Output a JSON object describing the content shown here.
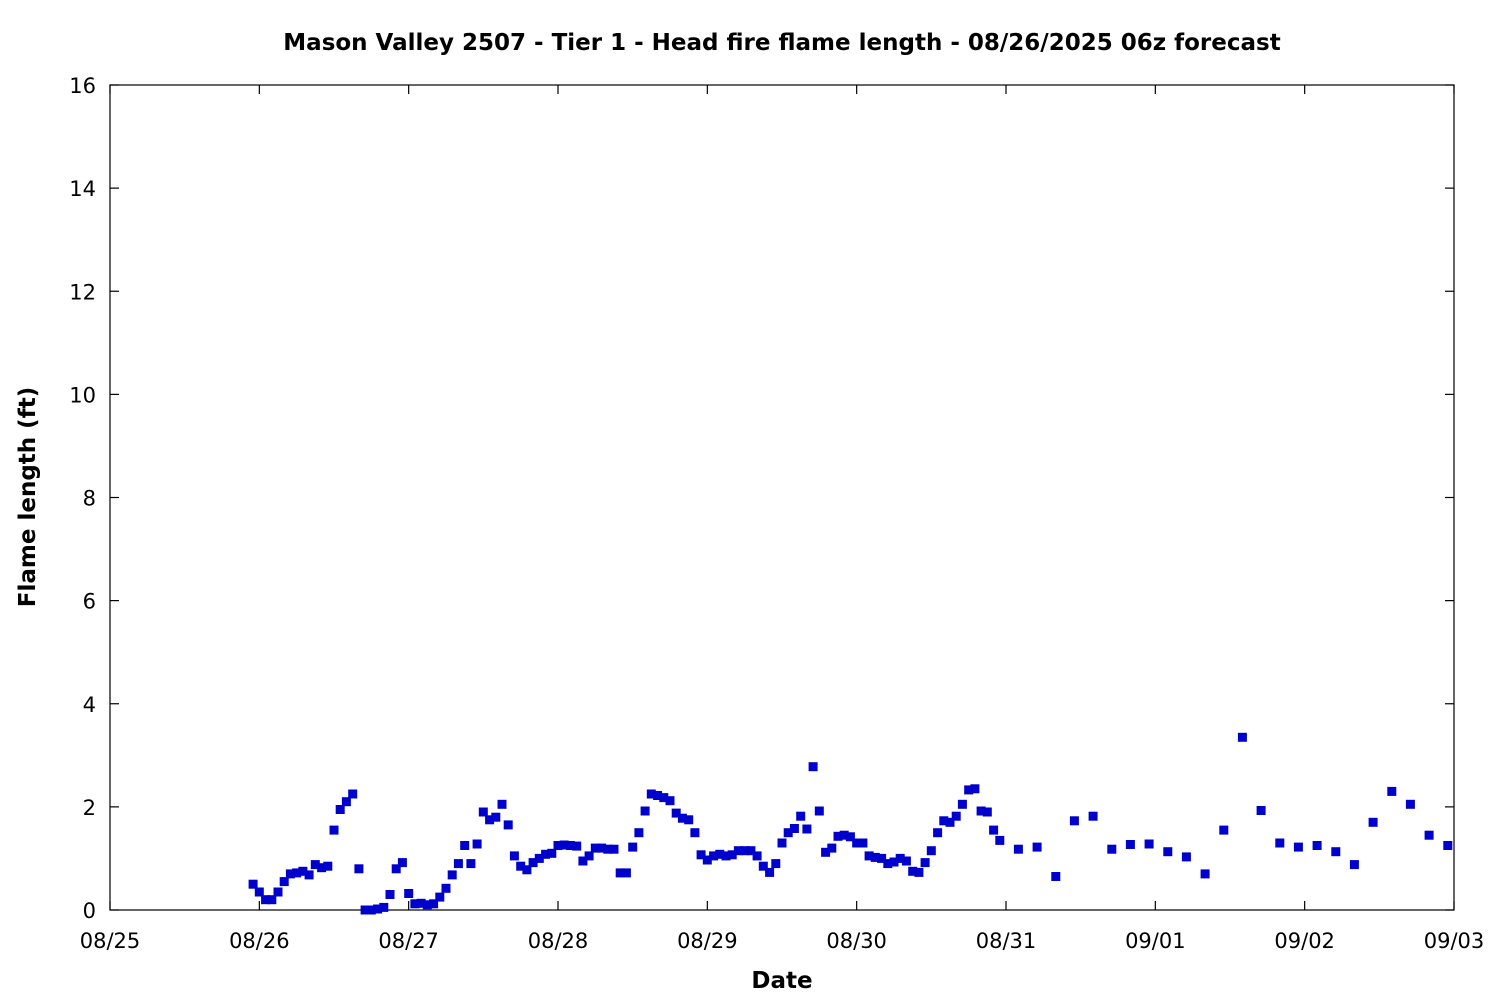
{
  "chart_data": {
    "type": "scatter",
    "title": "Mason Valley 2507 - Tier 1 - Head fire flame length - 08/26/2025 06z forecast",
    "xlabel": "Date",
    "ylabel": "Flame length (ft)",
    "xlim": [
      "2025-08-25 00:00",
      "2025-09-03 00:00"
    ],
    "ylim": [
      0,
      16
    ],
    "x_ticks": [
      "08/25",
      "08/26",
      "08/27",
      "08/28",
      "08/29",
      "08/30",
      "08/31",
      "09/01",
      "09/02",
      "09/03"
    ],
    "y_ticks": [
      0,
      2,
      4,
      6,
      8,
      10,
      12,
      14,
      16
    ],
    "grid": false,
    "legend": "none",
    "marker_color": "#0000cc",
    "marker": "square",
    "series": [
      {
        "x": [
          "2025-08-25 23:00",
          "2025-08-26 00:00",
          "2025-08-26 01:00",
          "2025-08-26 02:00",
          "2025-08-26 03:00",
          "2025-08-26 04:00",
          "2025-08-26 05:00",
          "2025-08-26 06:00",
          "2025-08-26 07:00",
          "2025-08-26 08:00",
          "2025-08-26 09:00",
          "2025-08-26 10:00",
          "2025-08-26 11:00",
          "2025-08-26 12:00",
          "2025-08-26 13:00",
          "2025-08-26 14:00",
          "2025-08-26 15:00",
          "2025-08-26 16:00",
          "2025-08-26 17:00",
          "2025-08-26 18:00",
          "2025-08-26 19:00",
          "2025-08-26 20:00",
          "2025-08-26 21:00",
          "2025-08-26 22:00",
          "2025-08-26 23:00",
          "2025-08-27 00:00",
          "2025-08-27 01:00",
          "2025-08-27 02:00",
          "2025-08-27 03:00",
          "2025-08-27 04:00",
          "2025-08-27 05:00",
          "2025-08-27 06:00",
          "2025-08-27 07:00",
          "2025-08-27 08:00",
          "2025-08-27 09:00",
          "2025-08-27 10:00",
          "2025-08-27 11:00",
          "2025-08-27 12:00",
          "2025-08-27 13:00",
          "2025-08-27 14:00",
          "2025-08-27 15:00",
          "2025-08-27 16:00",
          "2025-08-27 17:00",
          "2025-08-27 18:00",
          "2025-08-27 19:00",
          "2025-08-27 20:00",
          "2025-08-27 21:00",
          "2025-08-27 22:00",
          "2025-08-27 23:00",
          "2025-08-28 00:00",
          "2025-08-28 01:00",
          "2025-08-28 02:00",
          "2025-08-28 03:00",
          "2025-08-28 04:00",
          "2025-08-28 05:00",
          "2025-08-28 06:00",
          "2025-08-28 07:00",
          "2025-08-28 08:00",
          "2025-08-28 09:00",
          "2025-08-28 10:00",
          "2025-08-28 11:00",
          "2025-08-28 12:00",
          "2025-08-28 13:00",
          "2025-08-28 14:00",
          "2025-08-28 15:00",
          "2025-08-28 16:00",
          "2025-08-28 17:00",
          "2025-08-28 18:00",
          "2025-08-28 19:00",
          "2025-08-28 20:00",
          "2025-08-28 21:00",
          "2025-08-28 22:00",
          "2025-08-28 23:00",
          "2025-08-29 00:00",
          "2025-08-29 01:00",
          "2025-08-29 02:00",
          "2025-08-29 03:00",
          "2025-08-29 04:00",
          "2025-08-29 05:00",
          "2025-08-29 06:00",
          "2025-08-29 07:00",
          "2025-08-29 08:00",
          "2025-08-29 09:00",
          "2025-08-29 10:00",
          "2025-08-29 11:00",
          "2025-08-29 12:00",
          "2025-08-29 13:00",
          "2025-08-29 14:00",
          "2025-08-29 15:00",
          "2025-08-29 16:00",
          "2025-08-29 17:00",
          "2025-08-29 18:00",
          "2025-08-29 19:00",
          "2025-08-29 20:00",
          "2025-08-29 21:00",
          "2025-08-29 22:00",
          "2025-08-29 23:00",
          "2025-08-30 00:00",
          "2025-08-30 01:00",
          "2025-08-30 02:00",
          "2025-08-30 03:00",
          "2025-08-30 04:00",
          "2025-08-30 05:00",
          "2025-08-30 06:00",
          "2025-08-30 07:00",
          "2025-08-30 08:00",
          "2025-08-30 09:00",
          "2025-08-30 10:00",
          "2025-08-30 11:00",
          "2025-08-30 12:00",
          "2025-08-30 13:00",
          "2025-08-30 14:00",
          "2025-08-30 15:00",
          "2025-08-30 16:00",
          "2025-08-30 17:00",
          "2025-08-30 18:00",
          "2025-08-30 19:00",
          "2025-08-30 20:00",
          "2025-08-30 21:00",
          "2025-08-30 22:00",
          "2025-08-30 23:00",
          "2025-08-31 02:00",
          "2025-08-31 05:00",
          "2025-08-31 08:00",
          "2025-08-31 11:00",
          "2025-08-31 14:00",
          "2025-08-31 17:00",
          "2025-08-31 20:00",
          "2025-08-31 23:00",
          "2025-09-01 02:00",
          "2025-09-01 05:00",
          "2025-09-01 08:00",
          "2025-09-01 11:00",
          "2025-09-01 14:00",
          "2025-09-01 17:00",
          "2025-09-01 20:00",
          "2025-09-01 23:00",
          "2025-09-02 02:00",
          "2025-09-02 05:00",
          "2025-09-02 08:00",
          "2025-09-02 11:00",
          "2025-09-02 14:00",
          "2025-09-02 17:00",
          "2025-09-02 20:00",
          "2025-09-02 23:00"
        ],
        "y": [
          0.5,
          0.35,
          0.2,
          0.2,
          0.35,
          0.55,
          0.7,
          0.72,
          0.75,
          0.68,
          0.88,
          0.82,
          0.85,
          1.55,
          1.95,
          2.1,
          2.25,
          0.8,
          0.0,
          0.0,
          0.02,
          0.05,
          0.3,
          0.8,
          0.92,
          0.32,
          0.12,
          0.13,
          0.1,
          0.12,
          0.25,
          0.42,
          0.68,
          0.9,
          1.25,
          0.9,
          1.28,
          1.9,
          1.75,
          1.8,
          2.05,
          1.65,
          1.05,
          0.85,
          0.78,
          0.92,
          1.0,
          1.08,
          1.1,
          1.25,
          1.26,
          1.25,
          1.24,
          0.95,
          1.05,
          1.2,
          1.2,
          1.18,
          1.18,
          0.72,
          0.72,
          1.22,
          1.5,
          1.92,
          2.25,
          2.22,
          2.18,
          2.12,
          1.88,
          1.78,
          1.75,
          1.5,
          1.07,
          0.97,
          1.05,
          1.08,
          1.05,
          1.07,
          1.15,
          1.15,
          1.15,
          1.05,
          0.85,
          0.73,
          0.9,
          1.3,
          1.5,
          1.58,
          1.82,
          1.57,
          2.78,
          1.92,
          1.12,
          1.2,
          1.43,
          1.45,
          1.42,
          1.3,
          1.3,
          1.05,
          1.02,
          1.0,
          0.9,
          0.93,
          1.0,
          0.95,
          0.75,
          0.73,
          0.92,
          1.15,
          1.5,
          1.73,
          1.7,
          1.82,
          2.05,
          2.33,
          2.35,
          1.92,
          1.9,
          1.55,
          1.35,
          1.18,
          1.22,
          0.65,
          1.73,
          1.82,
          1.18,
          1.27,
          1.28,
          1.13,
          1.03,
          0.7,
          1.55,
          3.35,
          1.93,
          1.3,
          1.22,
          1.25,
          1.13,
          0.88,
          1.7,
          2.3,
          2.05,
          1.45,
          1.25
        ]
      }
    ]
  }
}
